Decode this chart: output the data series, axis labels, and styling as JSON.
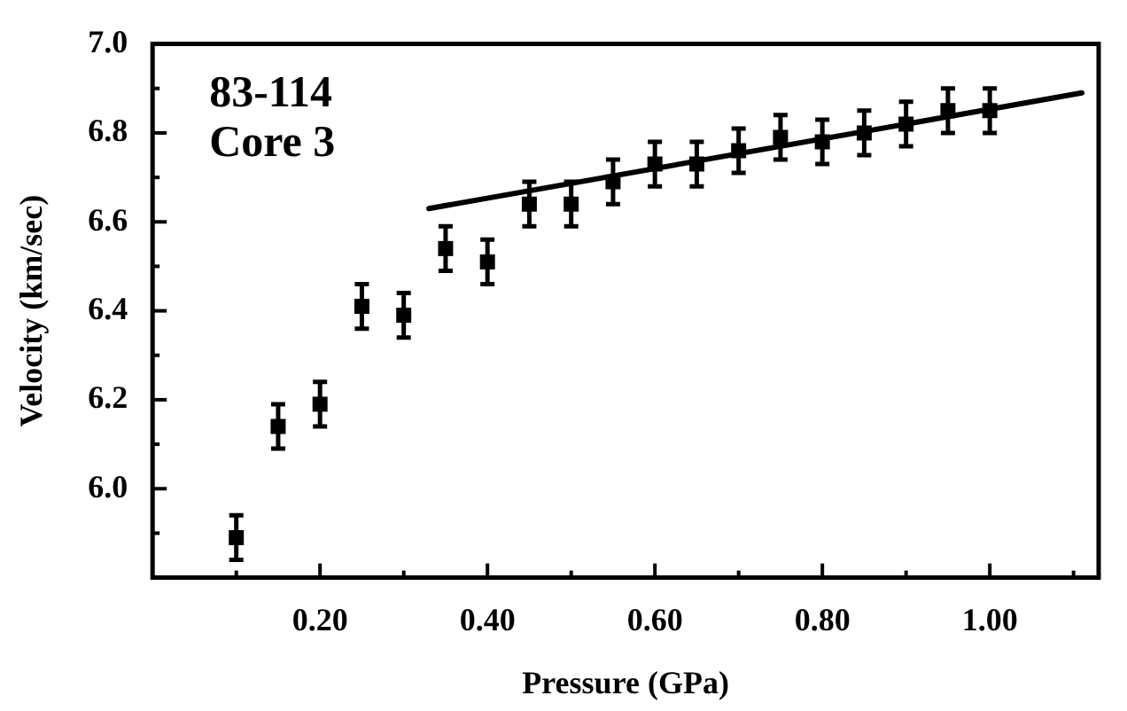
{
  "chart_data": {
    "type": "scatter",
    "xlabel": "Pressure (GPa)",
    "ylabel": "Velocity (km/sec)",
    "annotations": [
      "83-114",
      "Core 3"
    ],
    "xlim": [
      0,
      1.13
    ],
    "ylim": [
      5.8,
      7.0
    ],
    "xticks": [
      {
        "value": 0.1,
        "label": null
      },
      {
        "value": 0.2,
        "label": "0.20"
      },
      {
        "value": 0.3,
        "label": null
      },
      {
        "value": 0.4,
        "label": "0.40"
      },
      {
        "value": 0.5,
        "label": null
      },
      {
        "value": 0.6,
        "label": "0.60"
      },
      {
        "value": 0.7,
        "label": null
      },
      {
        "value": 0.8,
        "label": "0.80"
      },
      {
        "value": 0.9,
        "label": null
      },
      {
        "value": 1.0,
        "label": "1.00"
      },
      {
        "value": 1.1,
        "label": null
      }
    ],
    "yticks": [
      {
        "value": 5.9,
        "label": null
      },
      {
        "value": 6.0,
        "label": "6.0"
      },
      {
        "value": 6.1,
        "label": null
      },
      {
        "value": 6.2,
        "label": "6.2"
      },
      {
        "value": 6.3,
        "label": null
      },
      {
        "value": 6.4,
        "label": "6.4"
      },
      {
        "value": 6.5,
        "label": null
      },
      {
        "value": 6.6,
        "label": "6.6"
      },
      {
        "value": 6.7,
        "label": null
      },
      {
        "value": 6.8,
        "label": "6.8"
      },
      {
        "value": 6.9,
        "label": null
      },
      {
        "value": 7.0,
        "label": "7.0"
      }
    ],
    "marker": "square",
    "grid": false,
    "legend": false,
    "series": [
      {
        "color": "#000000",
        "x": [
          0.1,
          0.15,
          0.2,
          0.25,
          0.3,
          0.35,
          0.4,
          0.45,
          0.5,
          0.55,
          0.6,
          0.65,
          0.7,
          0.75,
          0.8,
          0.85,
          0.9,
          0.95,
          1.0
        ],
        "values": [
          5.89,
          6.14,
          6.19,
          6.41,
          6.39,
          6.54,
          6.51,
          6.64,
          6.64,
          6.69,
          6.73,
          6.73,
          6.76,
          6.79,
          6.78,
          6.8,
          6.82,
          6.85,
          6.85
        ],
        "errors": [
          0.05,
          0.05,
          0.05,
          0.05,
          0.05,
          0.05,
          0.05,
          0.05,
          0.05,
          0.05,
          0.05,
          0.05,
          0.05,
          0.05,
          0.05,
          0.05,
          0.05,
          0.05,
          0.05
        ]
      },
      {
        "type": "line",
        "color": "#000000",
        "marker": "none",
        "line_style": "solid",
        "x": [
          0.33,
          1.11
        ],
        "values": [
          6.63,
          6.89
        ]
      }
    ]
  }
}
